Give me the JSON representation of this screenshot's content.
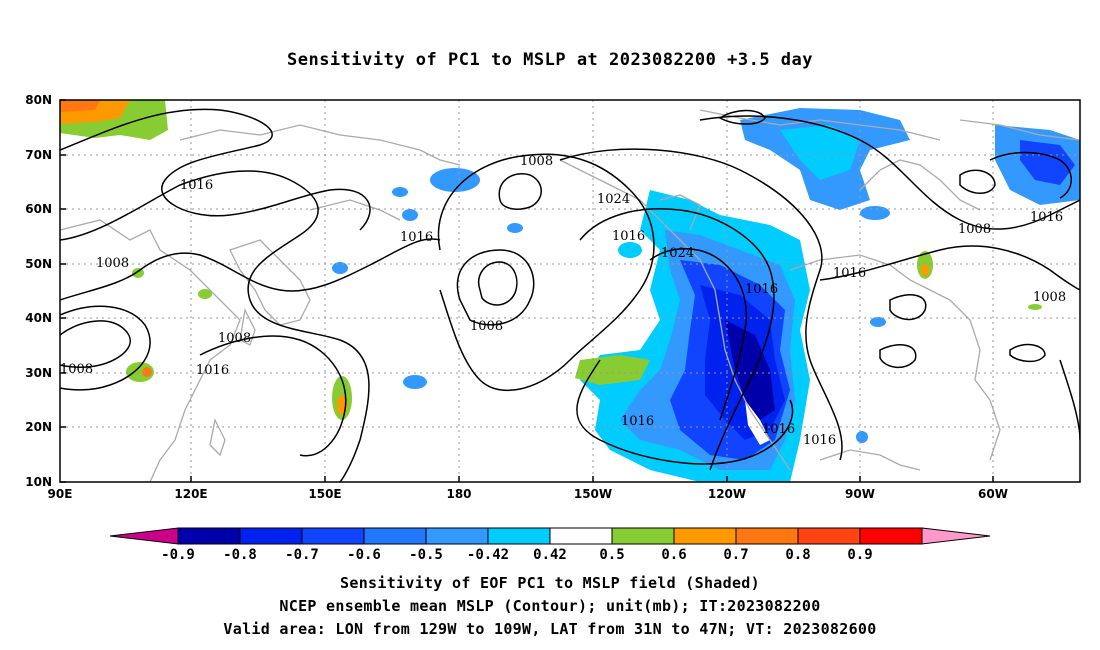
{
  "title": "Sensitivity of PC1 to MSLP at 2023082200 +3.5 day",
  "axes": {
    "lon_labels": [
      "90E",
      "120E",
      "150E",
      "180",
      "150W",
      "120W",
      "90W",
      "60W"
    ],
    "lat_labels": [
      "10N",
      "20N",
      "30N",
      "40N",
      "50N",
      "60N",
      "70N",
      "80N"
    ]
  },
  "contour_labels": [
    "1008",
    "1016",
    "1016",
    "1008",
    "1008",
    "1008",
    "1008",
    "1016",
    "1024",
    "1016",
    "1024",
    "1016",
    "1016",
    "1008",
    "1016",
    "1008",
    "1016",
    "1016"
  ],
  "colorbar": {
    "labels": [
      "-0.9",
      "-0.8",
      "-0.7",
      "-0.6",
      "-0.5",
      "-0.42",
      "0.42",
      "0.5",
      "0.6",
      "0.7",
      "0.8",
      "0.9"
    ],
    "colors": [
      "#cc0088",
      "#0000aa",
      "#0022ee",
      "#1144ff",
      "#2277ff",
      "#3399ff",
      "#00ccff",
      "#ffffff",
      "#88cc33",
      "#ff9900",
      "#ff7711",
      "#ff4411",
      "#ff0000",
      "#ff99cc"
    ]
  },
  "captions": [
    "Sensitivity of EOF PC1 to MSLP field (Shaded)",
    "NCEP ensemble mean MSLP (Contour); unit(mb); IT:2023082200",
    "Valid area: LON from 129W to 109W, LAT from 31N to 47N; VT: 2023082600"
  ]
}
